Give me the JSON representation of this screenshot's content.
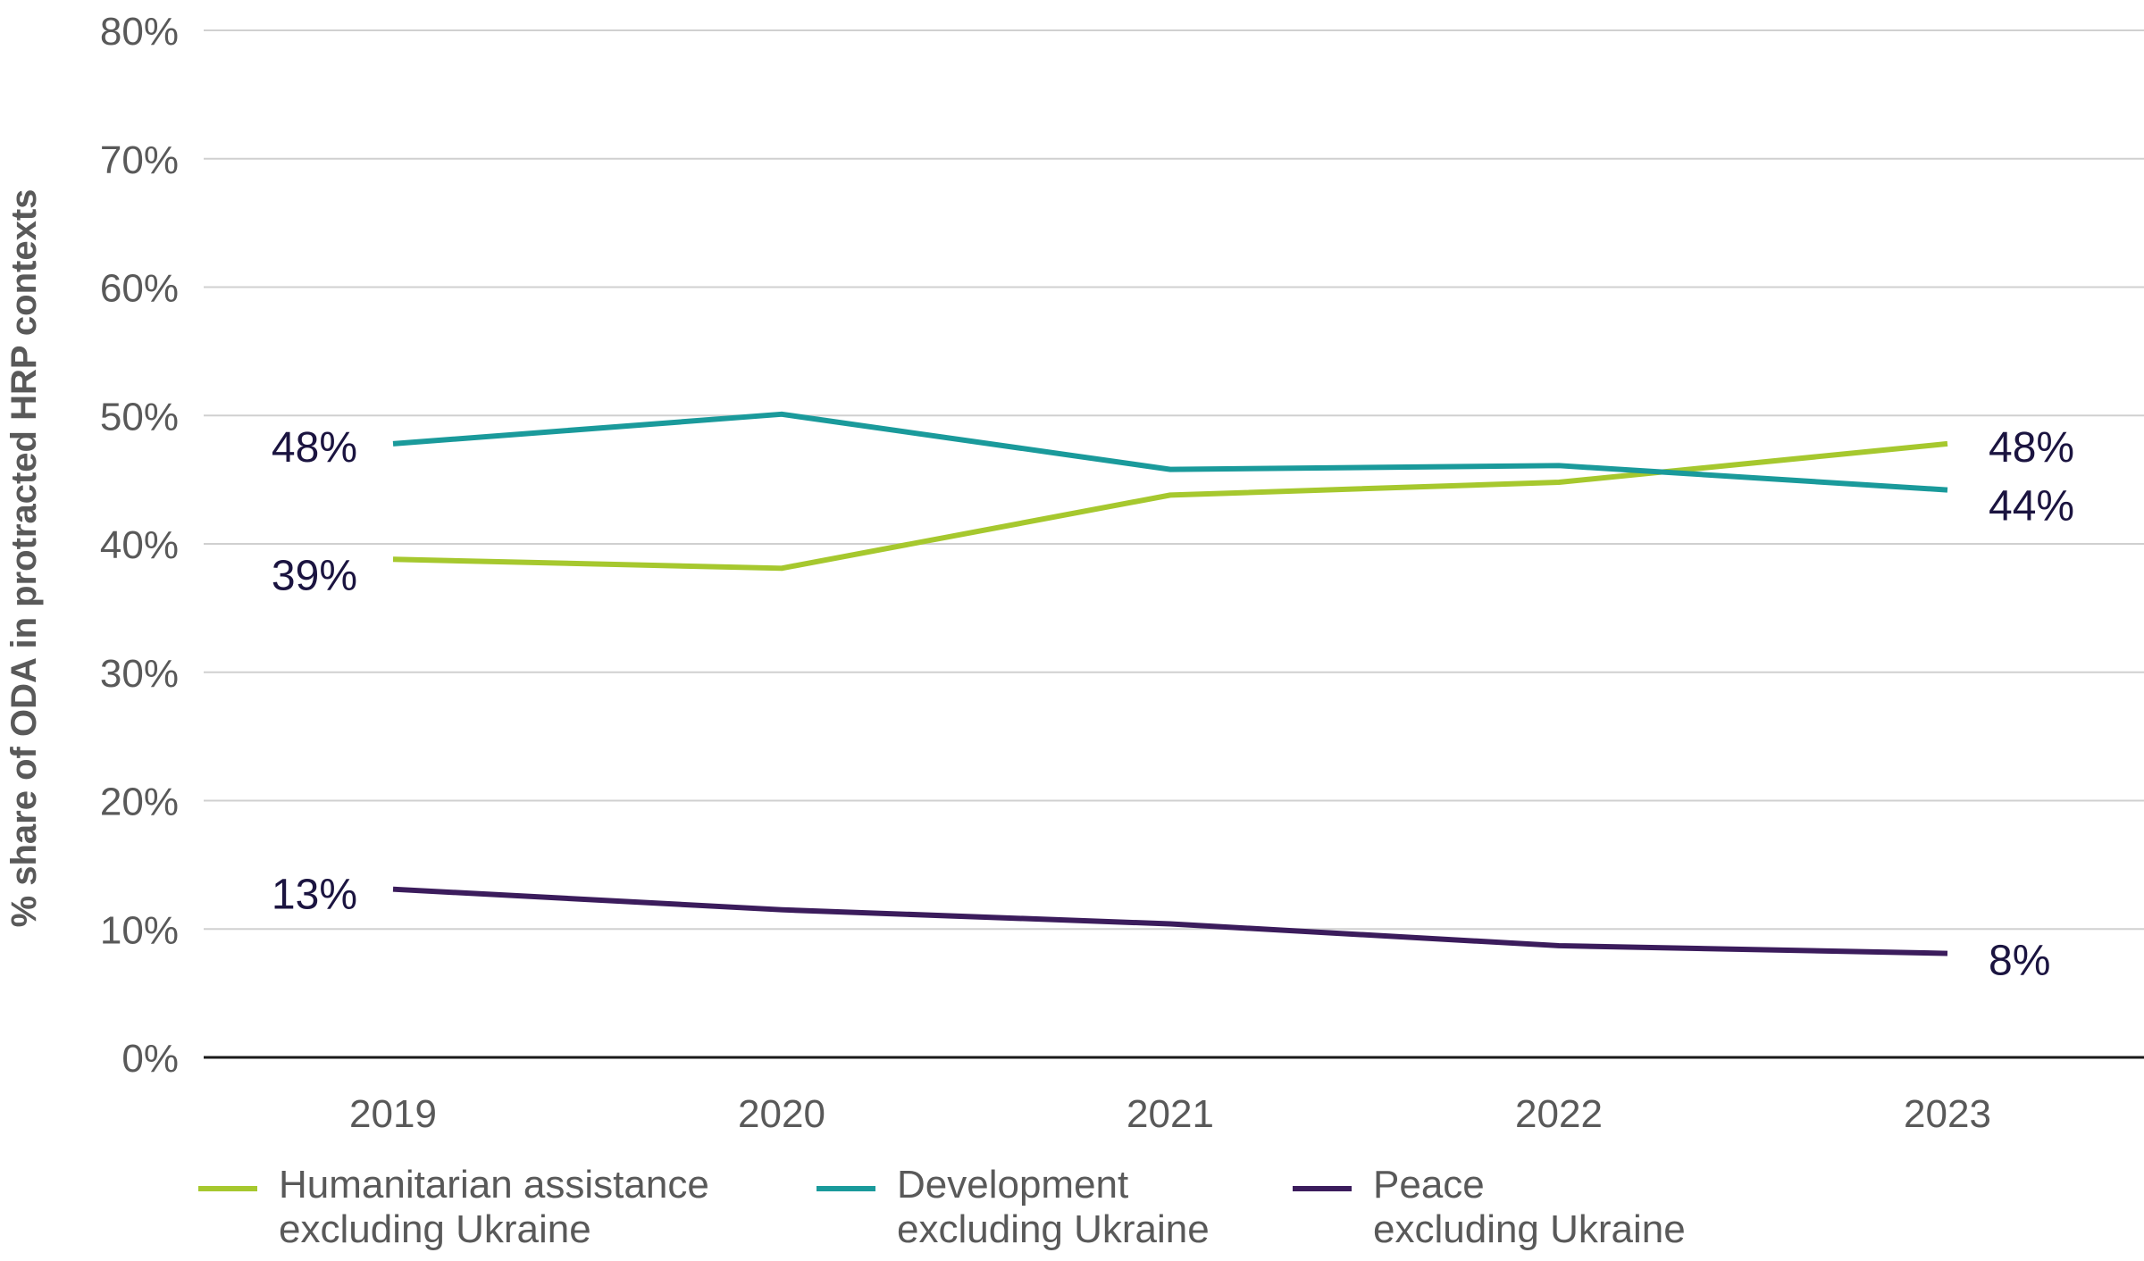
{
  "chart_data": {
    "type": "line",
    "ylabel": "% share of ODA in protracted HRP contexts",
    "categories": [
      "2019",
      "2020",
      "2021",
      "2022",
      "2023"
    ],
    "ylim": [
      0,
      80
    ],
    "yticks": [
      "0%",
      "10%",
      "20%",
      "30%",
      "40%",
      "50%",
      "60%",
      "70%",
      "80%"
    ],
    "grid": true,
    "legend_position": "bottom",
    "series": [
      {
        "name": "Humanitarian assistance excluding Ukraine",
        "name_line1": "Humanitarian assistance",
        "name_line2": "excluding Ukraine",
        "color": "#a6c82e",
        "values": [
          38.8,
          38.1,
          43.8,
          44.8,
          47.8
        ],
        "start_label": "39%",
        "end_label": "48%"
      },
      {
        "name": "Development excluding Ukraine",
        "name_line1": "Development",
        "name_line2": "excluding Ukraine",
        "color": "#1a9a9b",
        "values": [
          47.8,
          50.1,
          45.8,
          46.1,
          44.2
        ],
        "start_label": "48%",
        "end_label": "44%"
      },
      {
        "name": "Peace excluding Ukraine",
        "name_line1": "Peace",
        "name_line2": "excluding Ukraine",
        "color": "#3b1c5c",
        "values": [
          13.1,
          11.5,
          10.4,
          8.7,
          8.1
        ],
        "start_label": "13%",
        "end_label": "8%"
      }
    ]
  }
}
